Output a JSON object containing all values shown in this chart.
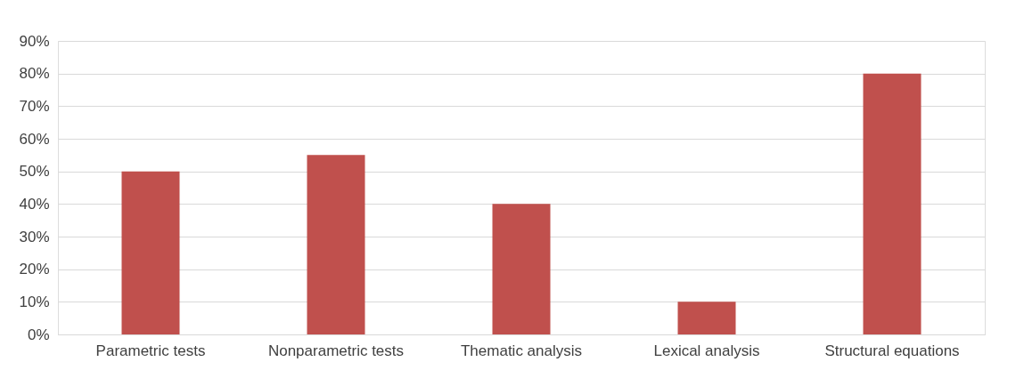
{
  "chart_data": {
    "type": "bar",
    "categories": [
      "Parametric tests",
      "Nonparametric tests",
      "Thematic analysis",
      "Lexical analysis",
      "Structural equations"
    ],
    "values": [
      50,
      55,
      40,
      10,
      80
    ],
    "color": "#c0504d",
    "ylim": [
      0,
      90
    ],
    "yticks": [
      {
        "value": 0,
        "label": "0%"
      },
      {
        "value": 10,
        "label": "10%"
      },
      {
        "value": 20,
        "label": "20%"
      },
      {
        "value": 30,
        "label": "30%"
      },
      {
        "value": 40,
        "label": "40%"
      },
      {
        "value": 50,
        "label": "50%"
      },
      {
        "value": 60,
        "label": "60%"
      },
      {
        "value": 70,
        "label": "70%"
      },
      {
        "value": 80,
        "label": "80%"
      },
      {
        "value": 90,
        "label": "90%"
      }
    ],
    "grid": "y"
  }
}
